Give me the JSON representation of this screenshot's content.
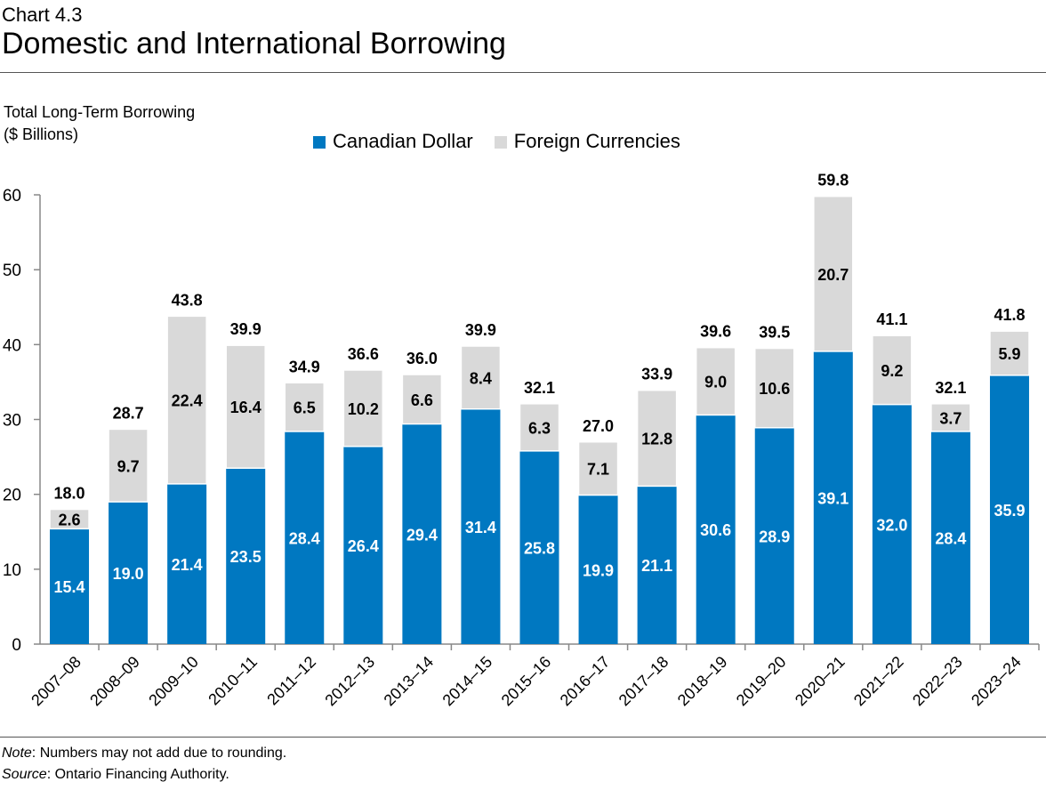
{
  "header": {
    "chart_label": "Chart 4.3",
    "title": "Domestic and International Borrowing"
  },
  "footer": {
    "note_label": "Note",
    "note": ": Numbers may not add due to rounding.",
    "source_label": "Source",
    "source": ": Ontario Financing Authority."
  },
  "chart_data": {
    "type": "bar",
    "stacked": true,
    "title": "Domestic and International Borrowing",
    "ylabel": "Total Long-Term Borrowing ($ Billions)",
    "ylabel_lines": [
      "Total Long-Term Borrowing",
      "($ Billions)"
    ],
    "ylim": [
      0,
      60
    ],
    "yticks": [
      0,
      10,
      20,
      30,
      40,
      50,
      60
    ],
    "grid": false,
    "legend_position": "top",
    "categories": [
      "2007–08",
      "2008–09",
      "2009–10",
      "2010–11",
      "2011–12",
      "2012–13",
      "2013–14",
      "2014–15",
      "2015–16",
      "2016–17",
      "2017–18",
      "2018–19",
      "2019–20",
      "2020–21",
      "2021–22",
      "2022–23",
      "2023–24"
    ],
    "series": [
      {
        "name": "Canadian Dollar",
        "color": "#0078C1",
        "values": [
          15.4,
          19.0,
          21.4,
          23.5,
          28.4,
          26.4,
          29.4,
          31.4,
          25.8,
          19.9,
          21.1,
          30.6,
          28.9,
          39.1,
          32.0,
          28.4,
          35.9
        ]
      },
      {
        "name": "Foreign Currencies",
        "color": "#D9D9D9",
        "values": [
          2.6,
          9.7,
          22.4,
          16.4,
          6.5,
          10.2,
          6.6,
          8.4,
          6.3,
          7.1,
          12.8,
          9.0,
          10.6,
          20.7,
          9.2,
          3.7,
          5.9
        ]
      }
    ],
    "totals": [
      18.0,
      28.7,
      43.8,
      39.9,
      34.9,
      36.6,
      36.0,
      39.9,
      32.1,
      27.0,
      33.9,
      39.6,
      39.5,
      59.8,
      41.1,
      32.1,
      41.8
    ]
  }
}
